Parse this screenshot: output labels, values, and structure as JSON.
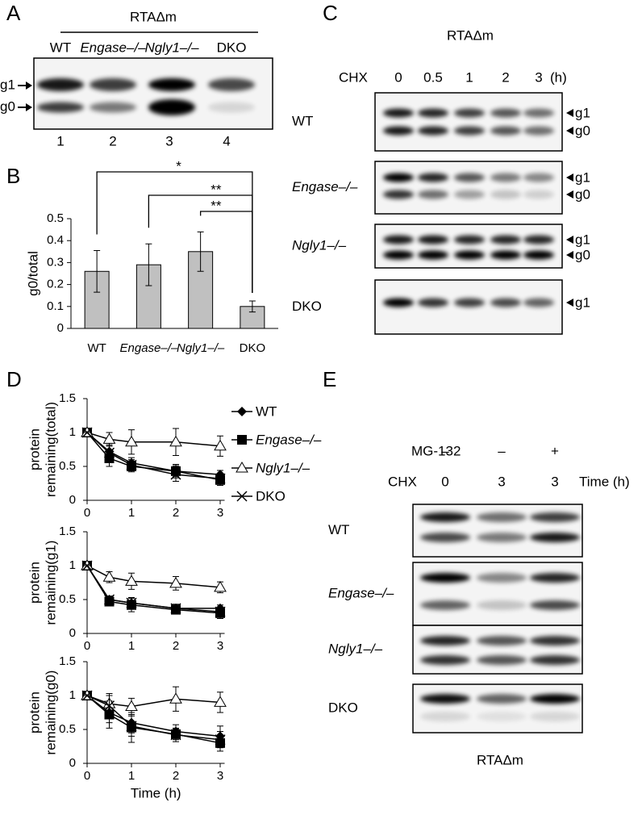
{
  "panel_letters": [
    "A",
    "B",
    "C",
    "D",
    "E"
  ],
  "blot_a": {
    "title": "RTAΔm",
    "lanes": [
      "WT",
      "Engase–/–",
      "Ngly1–/–",
      "DKO"
    ],
    "bands": [
      "g1",
      "g0"
    ],
    "lane_numbers": [
      "1",
      "2",
      "3",
      "4"
    ]
  },
  "blot_c": {
    "title": "RTAΔm",
    "treatment": "CHX",
    "times": [
      "0",
      "0.5",
      "1",
      "2",
      "3"
    ],
    "unit": "(h)",
    "rows": [
      {
        "label": "WT",
        "bands": [
          "g1",
          "g0"
        ]
      },
      {
        "label": "Engase–/–",
        "bands": [
          "g1",
          "g0"
        ]
      },
      {
        "label": "Ngly1–/–",
        "bands": [
          "g1",
          "g0"
        ]
      },
      {
        "label": "DKO",
        "bands": [
          "g1"
        ]
      }
    ]
  },
  "blot_e": {
    "title": "RTAΔm",
    "unit": "Time (h)",
    "treatments": [
      {
        "label": "MG-132",
        "values": [
          "–",
          "–",
          "+"
        ]
      },
      {
        "label": "CHX",
        "values": [
          "0",
          "3",
          "3"
        ]
      }
    ],
    "rows": [
      "WT",
      "Engase–/–",
      "Ngly1–/–",
      "DKO"
    ]
  },
  "chart_data": [
    {
      "type": "bar",
      "ylabel": "g0/total",
      "categories": [
        "WT",
        "Engase–/–",
        "Ngly1–/–",
        "DKO"
      ],
      "values": [
        0.26,
        0.29,
        0.35,
        0.1
      ],
      "errors": [
        0.095,
        0.095,
        0.09,
        0.025
      ],
      "color": "#c0c0c0",
      "ylim": [
        0,
        0.5
      ],
      "yticks": [
        0,
        0.1,
        0.2,
        0.3,
        0.4,
        0.5
      ],
      "significance": [
        {
          "label": "*",
          "from": 0,
          "to": 3
        },
        {
          "label": "**",
          "from": 1,
          "to": 3
        },
        {
          "label": "**",
          "from": 2,
          "to": 3
        }
      ]
    },
    {
      "type": "line",
      "ylabel_lines": [
        "protein",
        "remaining(total)"
      ],
      "x": [
        0,
        0.5,
        1,
        2,
        3
      ],
      "xlim": [
        0,
        3.1
      ],
      "xticks": [
        0,
        1,
        2,
        3
      ],
      "ylim": [
        0,
        1.5
      ],
      "yticks": [
        0,
        0.5,
        1,
        1.5
      ],
      "series": [
        {
          "name": "WT",
          "marker": "diamond",
          "color": "#000000",
          "values": [
            1,
            0.72,
            0.55,
            0.43,
            0.38
          ],
          "errors": [
            0,
            0.1,
            0.08,
            0.08,
            0.06
          ]
        },
        {
          "name": "Engase–/–",
          "marker": "square",
          "color": "#000000",
          "values": [
            1,
            0.62,
            0.5,
            0.43,
            0.3
          ],
          "errors": [
            0,
            0.12,
            0.08,
            0.1,
            0.08
          ]
        },
        {
          "name": "Ngly1–/–",
          "marker": "triangle",
          "color": "#000000",
          "values": [
            1,
            0.9,
            0.86,
            0.86,
            0.8
          ],
          "errors": [
            0,
            0.1,
            0.18,
            0.2,
            0.15
          ]
        },
        {
          "name": "DKO",
          "marker": "cross",
          "color": "#000000",
          "values": [
            1,
            0.7,
            0.52,
            0.38,
            0.32
          ],
          "errors": [
            0,
            0.1,
            0.08,
            0.1,
            0.08
          ]
        }
      ]
    },
    {
      "type": "line",
      "ylabel_lines": [
        "protein",
        "remaining(g1)"
      ],
      "x": [
        0,
        0.5,
        1,
        2,
        3
      ],
      "xlim": [
        0,
        3.1
      ],
      "xticks": [
        0,
        1,
        2,
        3
      ],
      "ylim": [
        0,
        1.5
      ],
      "yticks": [
        0,
        0.5,
        1,
        1.5
      ],
      "series": [
        {
          "marker": "diamond",
          "color": "#000000",
          "values": [
            1,
            0.5,
            0.45,
            0.37,
            0.37
          ],
          "errors": [
            0,
            0.05,
            0.08,
            0.06,
            0.05
          ]
        },
        {
          "marker": "square",
          "color": "#000000",
          "values": [
            1,
            0.47,
            0.42,
            0.35,
            0.3
          ],
          "errors": [
            0,
            0.05,
            0.1,
            0.06,
            0.08
          ]
        },
        {
          "marker": "triangle",
          "color": "#000000",
          "values": [
            1,
            0.83,
            0.77,
            0.74,
            0.68
          ],
          "errors": [
            0,
            0.08,
            0.12,
            0.1,
            0.08
          ]
        },
        {
          "marker": "cross",
          "color": "#000000",
          "values": [
            1,
            0.5,
            0.45,
            0.37,
            0.32
          ],
          "errors": [
            0,
            0.05,
            0.08,
            0.06,
            0.06
          ]
        }
      ]
    },
    {
      "type": "line",
      "ylabel_lines": [
        "protein",
        "remaining(g0)"
      ],
      "xlabel": "Time (h)",
      "x": [
        0,
        0.5,
        1,
        2,
        3
      ],
      "xlim": [
        0,
        3.1
      ],
      "xticks": [
        0,
        1,
        2,
        3
      ],
      "ylim": [
        0,
        1.5
      ],
      "yticks": [
        0,
        0.5,
        1,
        1.5
      ],
      "series": [
        {
          "marker": "diamond",
          "color": "#000000",
          "values": [
            1,
            0.75,
            0.6,
            0.47,
            0.4
          ],
          "errors": [
            0,
            0.15,
            0.15,
            0.1,
            0.15
          ]
        },
        {
          "marker": "square",
          "color": "#000000",
          "values": [
            1,
            0.72,
            0.53,
            0.43,
            0.3
          ],
          "errors": [
            0,
            0.2,
            0.22,
            0.08,
            0.12
          ]
        },
        {
          "marker": "triangle",
          "color": "#000000",
          "values": [
            1,
            0.88,
            0.84,
            0.95,
            0.9
          ],
          "errors": [
            0,
            0.15,
            0.12,
            0.18,
            0.15
          ]
        },
        {
          "marker": "cross",
          "color": "#000000",
          "values": [
            1,
            0.85,
            0.55,
            0.42,
            0.35
          ],
          "errors": [
            0,
            0.15,
            0.15,
            0.1,
            0.12
          ]
        }
      ]
    }
  ]
}
